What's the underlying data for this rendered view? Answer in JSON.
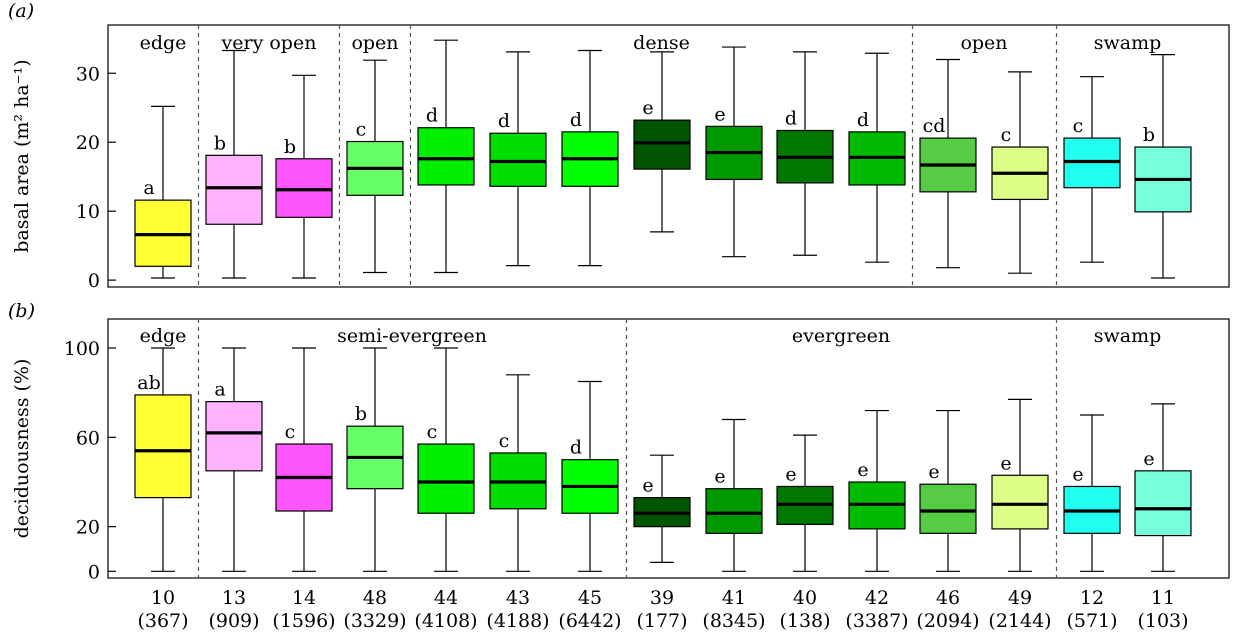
{
  "chart_data": [
    {
      "type": "box",
      "panel_label": "(a)",
      "ylabel": "basal area (m² ha⁻¹)",
      "ylim": [
        -1,
        37
      ],
      "yticks": [
        0,
        10,
        20,
        30
      ],
      "categories": [
        "10",
        "13",
        "14",
        "48",
        "44",
        "43",
        "45",
        "39",
        "41",
        "40",
        "42",
        "46",
        "49",
        "12",
        "11"
      ],
      "groups": [
        {
          "label": "edge",
          "start": 0,
          "end": 0
        },
        {
          "label": "very open",
          "start": 1,
          "end": 2
        },
        {
          "label": "open",
          "start": 3,
          "end": 3
        },
        {
          "label": "dense",
          "start": 4,
          "end": 10
        },
        {
          "label": "open",
          "start": 11,
          "end": 12
        },
        {
          "label": "swamp",
          "start": 13,
          "end": 14
        }
      ],
      "boxes": [
        {
          "min": 0.3,
          "q1": 2.0,
          "median": 6.6,
          "q3": 11.6,
          "max": 25.2,
          "letter": "a",
          "color": "#ffff33"
        },
        {
          "min": 0.3,
          "q1": 8.1,
          "median": 13.4,
          "q3": 18.1,
          "max": 33.3,
          "letter": "b",
          "color": "#ffb3ff"
        },
        {
          "min": 0.3,
          "q1": 9.1,
          "median": 13.1,
          "q3": 17.6,
          "max": 29.7,
          "letter": "b",
          "color": "#ff55ff"
        },
        {
          "min": 1.1,
          "q1": 12.3,
          "median": 16.2,
          "q3": 20.1,
          "max": 31.9,
          "letter": "c",
          "color": "#66ff66"
        },
        {
          "min": 1.1,
          "q1": 13.8,
          "median": 17.6,
          "q3": 22.1,
          "max": 34.8,
          "letter": "d",
          "color": "#00ee00"
        },
        {
          "min": 2.1,
          "q1": 13.6,
          "median": 17.2,
          "q3": 21.3,
          "max": 33.1,
          "letter": "d",
          "color": "#00dd00"
        },
        {
          "min": 2.1,
          "q1": 13.6,
          "median": 17.6,
          "q3": 21.5,
          "max": 33.3,
          "letter": "d",
          "color": "#00ff00"
        },
        {
          "min": 7.0,
          "q1": 16.1,
          "median": 19.9,
          "q3": 23.2,
          "max": 33.1,
          "letter": "e",
          "color": "#005500"
        },
        {
          "min": 3.4,
          "q1": 14.6,
          "median": 18.5,
          "q3": 22.3,
          "max": 33.8,
          "letter": "e",
          "color": "#009900"
        },
        {
          "min": 3.6,
          "q1": 14.1,
          "median": 17.8,
          "q3": 21.7,
          "max": 33.1,
          "letter": "d",
          "color": "#007700"
        },
        {
          "min": 2.6,
          "q1": 13.8,
          "median": 17.8,
          "q3": 21.5,
          "max": 32.9,
          "letter": "d",
          "color": "#00bb00"
        },
        {
          "min": 1.8,
          "q1": 12.8,
          "median": 16.7,
          "q3": 20.6,
          "max": 32.0,
          "letter": "cd",
          "color": "#55cc44"
        },
        {
          "min": 1.0,
          "q1": 11.7,
          "median": 15.5,
          "q3": 19.3,
          "max": 30.2,
          "letter": "c",
          "color": "#ddff88"
        },
        {
          "min": 2.6,
          "q1": 13.4,
          "median": 17.2,
          "q3": 20.6,
          "max": 29.5,
          "letter": "c",
          "color": "#22ffee"
        },
        {
          "min": 0.3,
          "q1": 9.9,
          "median": 14.6,
          "q3": 19.3,
          "max": 32.7,
          "letter": "b",
          "color": "#77ffdd"
        }
      ]
    },
    {
      "type": "box",
      "panel_label": "(b)",
      "ylabel": "deciduousness (%)",
      "ylim": [
        -3,
        113
      ],
      "yticks": [
        0,
        20,
        60,
        100
      ],
      "categories": [
        "10",
        "13",
        "14",
        "48",
        "44",
        "43",
        "45",
        "39",
        "41",
        "40",
        "42",
        "46",
        "49",
        "12",
        "11"
      ],
      "counts": [
        "(367)",
        "(909)",
        "(1596)",
        "(3329)",
        "(4108)",
        "(4188)",
        "(6442)",
        "(177)",
        "(8345)",
        "(138)",
        "(3387)",
        "(2094)",
        "(2144)",
        "(571)",
        "(103)"
      ],
      "groups": [
        {
          "label": "edge",
          "start": 0,
          "end": 0
        },
        {
          "label": "semi-evergreen",
          "start": 1,
          "end": 6
        },
        {
          "label": "evergreen",
          "start": 7,
          "end": 12
        },
        {
          "label": "swamp",
          "start": 13,
          "end": 14
        }
      ],
      "boxes": [
        {
          "min": 0,
          "q1": 33,
          "median": 54,
          "q3": 79,
          "max": 100,
          "letter": "ab",
          "color": "#ffff33"
        },
        {
          "min": 0,
          "q1": 45,
          "median": 62,
          "q3": 76,
          "max": 100,
          "letter": "a",
          "color": "#ffb3ff"
        },
        {
          "min": 0,
          "q1": 27,
          "median": 42,
          "q3": 57,
          "max": 100,
          "letter": "c",
          "color": "#ff55ff"
        },
        {
          "min": 0,
          "q1": 37,
          "median": 51,
          "q3": 65,
          "max": 100,
          "letter": "b",
          "color": "#66ff66"
        },
        {
          "min": 0,
          "q1": 26,
          "median": 40,
          "q3": 57,
          "max": 100,
          "letter": "c",
          "color": "#00ee00"
        },
        {
          "min": 0,
          "q1": 28,
          "median": 40,
          "q3": 53,
          "max": 88,
          "letter": "c",
          "color": "#00dd00"
        },
        {
          "min": 0,
          "q1": 26,
          "median": 38,
          "q3": 50,
          "max": 85,
          "letter": "d",
          "color": "#00ff00"
        },
        {
          "min": 4,
          "q1": 20,
          "median": 26,
          "q3": 33,
          "max": 52,
          "letter": "e",
          "color": "#005500"
        },
        {
          "min": 0,
          "q1": 17,
          "median": 26,
          "q3": 37,
          "max": 68,
          "letter": "e",
          "color": "#009900"
        },
        {
          "min": 0,
          "q1": 21,
          "median": 30,
          "q3": 38,
          "max": 61,
          "letter": "e",
          "color": "#007700"
        },
        {
          "min": 0,
          "q1": 19,
          "median": 30,
          "q3": 40,
          "max": 72,
          "letter": "e",
          "color": "#00bb00"
        },
        {
          "min": 0,
          "q1": 17,
          "median": 27,
          "q3": 39,
          "max": 72,
          "letter": "e",
          "color": "#55cc44"
        },
        {
          "min": 0,
          "q1": 19,
          "median": 30,
          "q3": 43,
          "max": 77,
          "letter": "e",
          "color": "#ddff88"
        },
        {
          "min": 0,
          "q1": 17,
          "median": 27,
          "q3": 38,
          "max": 70,
          "letter": "e",
          "color": "#22ffee"
        },
        {
          "min": 0,
          "q1": 16,
          "median": 28,
          "q3": 45,
          "max": 75,
          "letter": "e",
          "color": "#77ffdd"
        }
      ]
    }
  ]
}
